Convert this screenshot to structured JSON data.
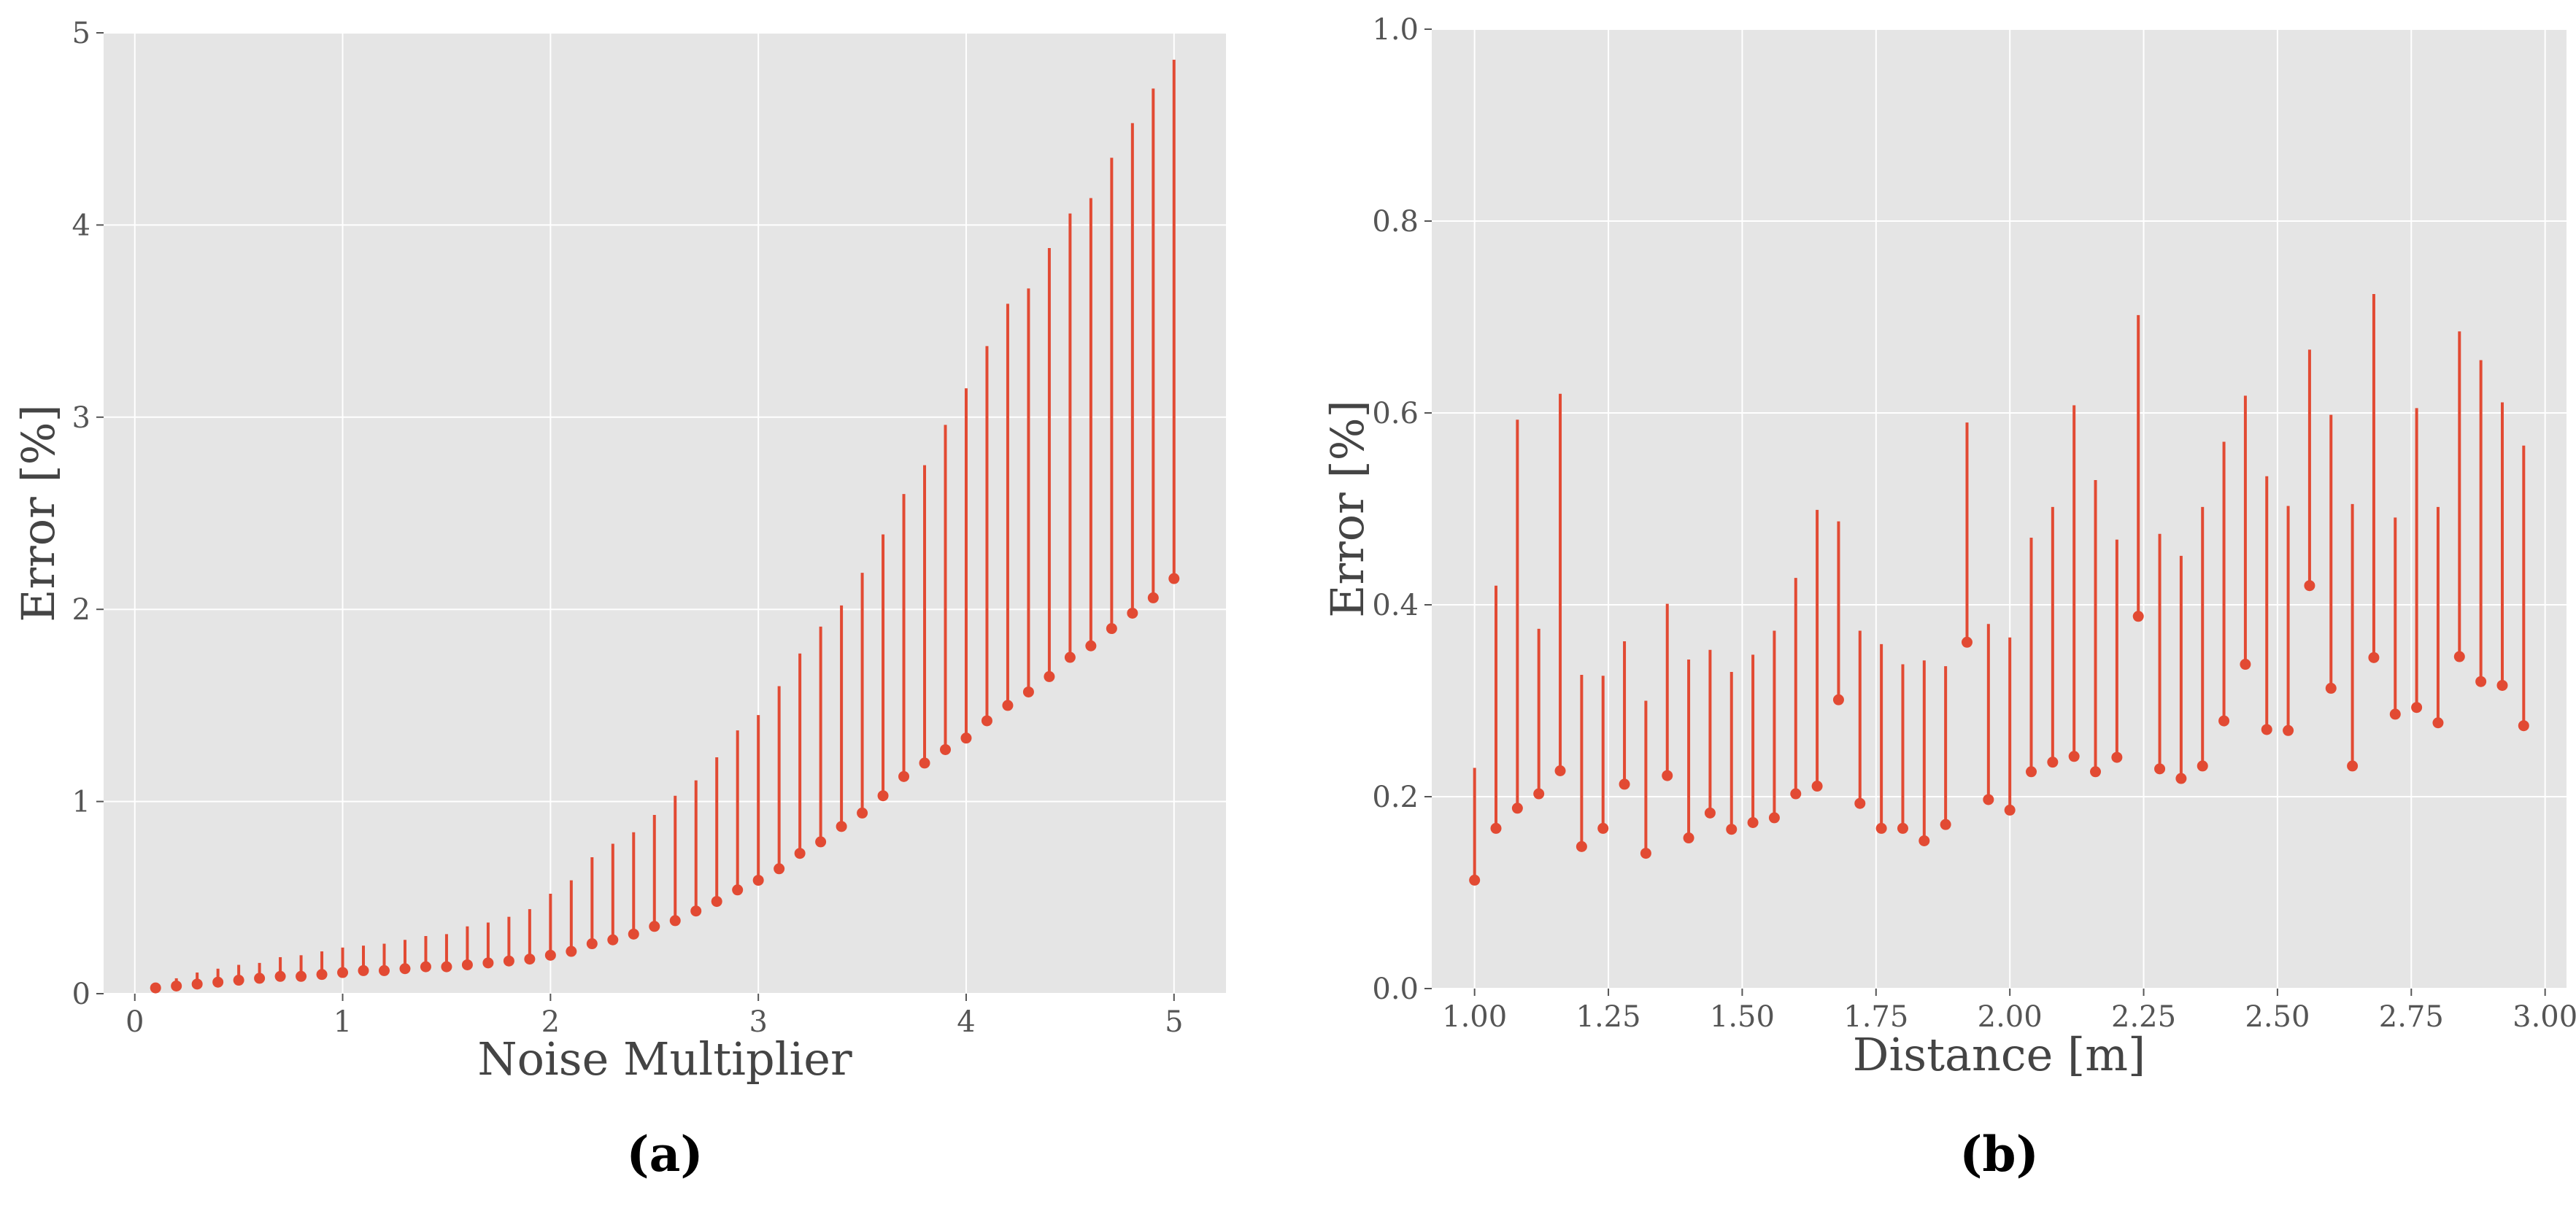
{
  "colors": {
    "panel_background": "#e5e5e5",
    "grid": "#ffffff",
    "series": "#e24a33",
    "tick_text": "#555555",
    "axis_text": "#444444"
  },
  "chart_data": [
    {
      "type": "errorbar",
      "panel_label": "(a)",
      "xlabel": "Noise Multiplier",
      "ylabel": "Error [%]",
      "xlim": [
        -0.15,
        5.25
      ],
      "ylim": [
        0,
        5
      ],
      "xticks": [
        0,
        1,
        2,
        3,
        4,
        5
      ],
      "xtick_labels": [
        "0",
        "1",
        "2",
        "3",
        "4",
        "5"
      ],
      "yticks": [
        0,
        1,
        2,
        3,
        4,
        5
      ],
      "ytick_labels": [
        "0",
        "1",
        "2",
        "3",
        "4",
        "5"
      ],
      "grid": true,
      "series": [
        {
          "x": [
            0.1,
            0.2,
            0.3,
            0.4,
            0.5,
            0.6,
            0.7,
            0.8,
            0.9,
            1.0,
            1.1,
            1.2,
            1.3,
            1.4,
            1.5,
            1.6,
            1.7,
            1.8,
            1.9,
            2.0,
            2.1,
            2.2,
            2.3,
            2.4,
            2.5,
            2.6,
            2.7,
            2.8,
            2.9,
            3.0,
            3.1,
            3.2,
            3.3,
            3.4,
            3.5,
            3.6,
            3.7,
            3.8,
            3.9,
            4.0,
            4.1,
            4.2,
            4.3,
            4.4,
            4.5,
            4.6,
            4.7,
            4.8,
            4.9,
            5.0
          ],
          "y": [
            0.03,
            0.04,
            0.05,
            0.06,
            0.07,
            0.08,
            0.09,
            0.09,
            0.1,
            0.11,
            0.12,
            0.12,
            0.13,
            0.14,
            0.14,
            0.15,
            0.16,
            0.17,
            0.18,
            0.2,
            0.22,
            0.26,
            0.28,
            0.31,
            0.35,
            0.38,
            0.43,
            0.48,
            0.54,
            0.59,
            0.65,
            0.73,
            0.79,
            0.87,
            0.94,
            1.03,
            1.13,
            1.2,
            1.27,
            1.33,
            1.42,
            1.5,
            1.57,
            1.65,
            1.75,
            1.81,
            1.9,
            1.98,
            2.06,
            2.16
          ],
          "y_upper": [
            0.05,
            0.08,
            0.11,
            0.13,
            0.15,
            0.16,
            0.19,
            0.2,
            0.22,
            0.24,
            0.25,
            0.26,
            0.28,
            0.3,
            0.31,
            0.35,
            0.37,
            0.4,
            0.44,
            0.52,
            0.59,
            0.71,
            0.78,
            0.84,
            0.93,
            1.03,
            1.11,
            1.23,
            1.37,
            1.45,
            1.6,
            1.77,
            1.91,
            2.02,
            2.19,
            2.39,
            2.6,
            2.75,
            2.96,
            3.15,
            3.37,
            3.59,
            3.67,
            3.88,
            4.06,
            4.14,
            4.35,
            4.53,
            4.71,
            4.86
          ]
        }
      ]
    },
    {
      "type": "errorbar",
      "panel_label": "(b)",
      "xlabel": "Distance [m]",
      "ylabel": "Error [%]",
      "xlim": [
        0.92,
        3.04
      ],
      "ylim": [
        0,
        1.0
      ],
      "xticks": [
        1.0,
        1.25,
        1.5,
        1.75,
        2.0,
        2.25,
        2.5,
        2.75,
        3.0
      ],
      "xtick_labels": [
        "1.00",
        "1.25",
        "1.50",
        "1.75",
        "2.00",
        "2.25",
        "2.50",
        "2.75",
        "3.00"
      ],
      "yticks": [
        0,
        0.2,
        0.4,
        0.6,
        0.8,
        1.0
      ],
      "ytick_labels": [
        "0.0",
        "0.2",
        "0.4",
        "0.6",
        "0.8",
        "1.0"
      ],
      "grid": true,
      "series": [
        {
          "x": [
            1.0,
            1.04,
            1.08,
            1.12,
            1.16,
            1.2,
            1.24,
            1.28,
            1.32,
            1.36,
            1.4,
            1.44,
            1.48,
            1.52,
            1.56,
            1.6,
            1.64,
            1.68,
            1.72,
            1.76,
            1.8,
            1.84,
            1.88,
            1.92,
            1.96,
            2.0,
            2.04,
            2.08,
            2.12,
            2.16,
            2.2,
            2.24,
            2.28,
            2.32,
            2.36,
            2.4,
            2.44,
            2.48,
            2.52,
            2.56,
            2.6,
            2.64,
            2.68,
            2.72,
            2.76,
            2.8,
            2.84,
            2.88,
            2.92,
            2.96
          ],
          "y": [
            0.113,
            0.167,
            0.188,
            0.203,
            0.227,
            0.148,
            0.167,
            0.213,
            0.141,
            0.222,
            0.157,
            0.183,
            0.166,
            0.173,
            0.178,
            0.203,
            0.211,
            0.301,
            0.193,
            0.167,
            0.167,
            0.154,
            0.171,
            0.361,
            0.197,
            0.186,
            0.226,
            0.236,
            0.242,
            0.226,
            0.241,
            0.388,
            0.229,
            0.219,
            0.232,
            0.279,
            0.338,
            0.27,
            0.269,
            0.42,
            0.313,
            0.232,
            0.345,
            0.286,
            0.293,
            0.277,
            0.346,
            0.32,
            0.316,
            0.274
          ],
          "y_upper": [
            0.23,
            0.42,
            0.593,
            0.375,
            0.62,
            0.327,
            0.326,
            0.362,
            0.3,
            0.401,
            0.343,
            0.353,
            0.33,
            0.348,
            0.373,
            0.428,
            0.499,
            0.487,
            0.373,
            0.359,
            0.338,
            0.342,
            0.336,
            0.59,
            0.38,
            0.366,
            0.47,
            0.502,
            0.608,
            0.53,
            0.468,
            0.702,
            0.474,
            0.451,
            0.502,
            0.57,
            0.618,
            0.534,
            0.503,
            0.666,
            0.598,
            0.505,
            0.724,
            0.491,
            0.605,
            0.502,
            0.685,
            0.655,
            0.611,
            0.566
          ]
        }
      ]
    }
  ]
}
